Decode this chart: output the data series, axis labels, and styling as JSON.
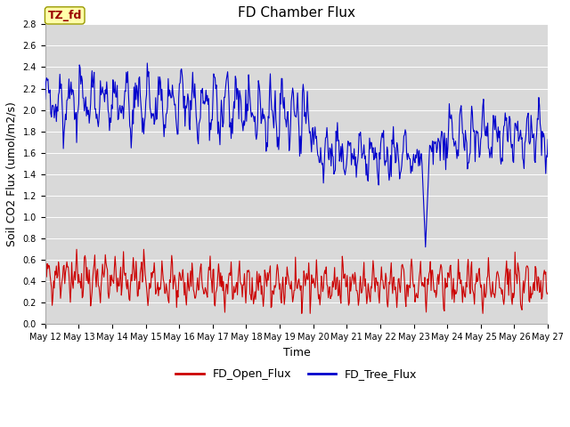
{
  "title": "FD Chamber Flux",
  "xlabel": "Time",
  "ylabel": "Soil CO2 Flux (umol/m2/s)",
  "ylim": [
    0.0,
    2.8
  ],
  "yticks": [
    0.0,
    0.2,
    0.4,
    0.6,
    0.8,
    1.0,
    1.2,
    1.4,
    1.6,
    1.8,
    2.0,
    2.2,
    2.4,
    2.6,
    2.8
  ],
  "xtick_labels": [
    "May 12",
    "May 13",
    "May 14",
    "May 15",
    "May 16",
    "May 17",
    "May 18",
    "May 19",
    "May 20",
    "May 21",
    "May 22",
    "May 23",
    "May 24",
    "May 25",
    "May 26",
    "May 27"
  ],
  "annotation_text": "TZ_fd",
  "open_flux_color": "#cc0000",
  "tree_flux_color": "#0000cc",
  "background_color": "#d9d9d9",
  "fig_background": "#ffffff",
  "legend_labels": [
    "FD_Open_Flux",
    "FD_Tree_Flux"
  ],
  "title_fontsize": 11,
  "axis_label_fontsize": 9,
  "tick_fontsize": 7,
  "legend_fontsize": 9,
  "annotation_fontsize": 9,
  "linewidth": 0.8
}
